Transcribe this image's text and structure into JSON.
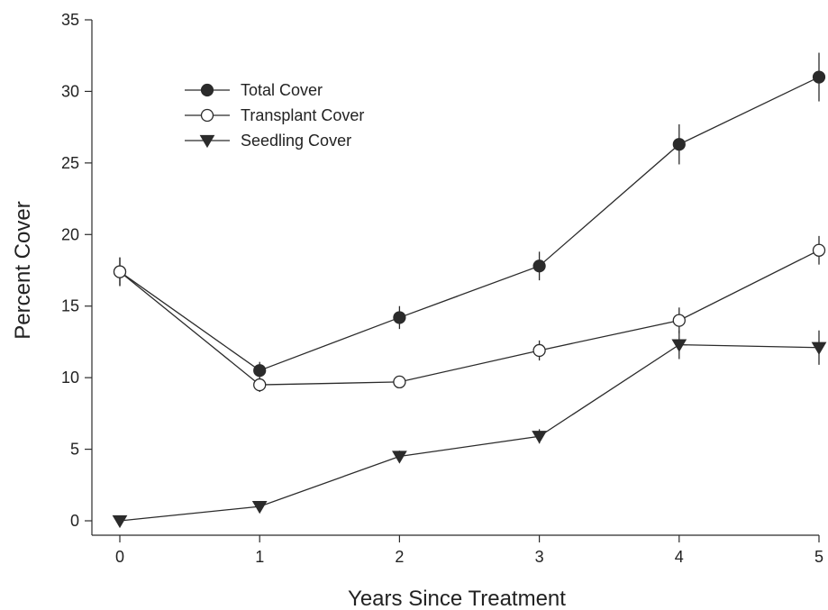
{
  "chart_data": {
    "type": "line",
    "title": "",
    "xlabel": "Years Since Treatment",
    "ylabel": "Percent Cover",
    "xlim": [
      0,
      5
    ],
    "ylim": [
      0,
      35
    ],
    "x": [
      0,
      1,
      2,
      3,
      4,
      5
    ],
    "xticks": [
      "0",
      "1",
      "2",
      "3",
      "4",
      "5"
    ],
    "yticks": [
      "0",
      "5",
      "10",
      "15",
      "20",
      "25",
      "30",
      "35"
    ],
    "grid": false,
    "legend_position": "top-left",
    "series": [
      {
        "name": "Total Cover",
        "marker": "filled-circle",
        "color": "#2b2b2b",
        "values": [
          17.4,
          10.5,
          14.2,
          17.8,
          26.3,
          31.0
        ],
        "err": [
          1.0,
          0.6,
          0.8,
          1.0,
          1.4,
          1.7
        ]
      },
      {
        "name": "Transplant Cover",
        "marker": "open-circle",
        "color": "#2b2b2b",
        "values": [
          17.4,
          9.5,
          9.7,
          11.9,
          14.0,
          18.9
        ],
        "err": [
          1.0,
          0.5,
          0.4,
          0.7,
          0.9,
          1.0
        ]
      },
      {
        "name": "Seedling Cover",
        "marker": "filled-triangle-down",
        "color": "#2b2b2b",
        "values": [
          0.0,
          1.0,
          4.5,
          5.9,
          12.3,
          12.1
        ],
        "err": [
          0.0,
          0.2,
          0.4,
          0.5,
          1.0,
          1.2
        ]
      }
    ]
  }
}
